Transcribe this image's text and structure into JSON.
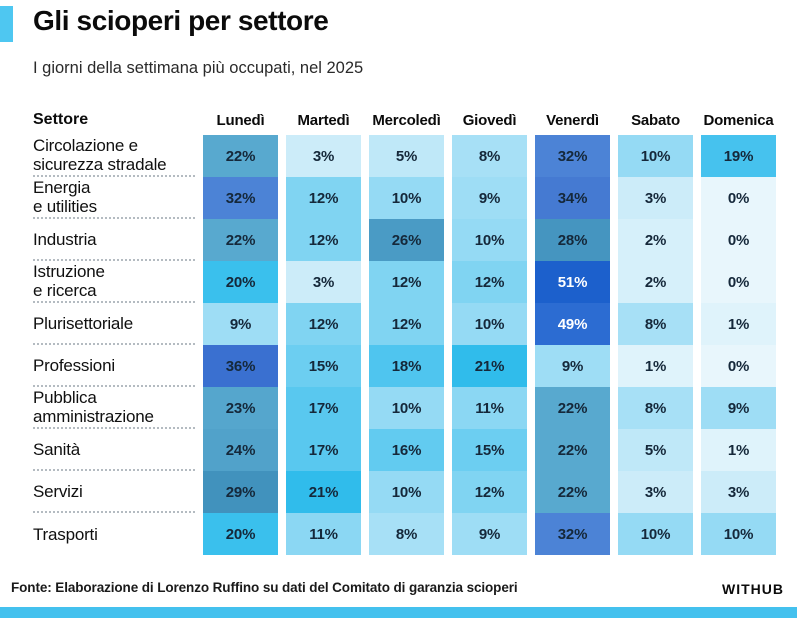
{
  "header": {
    "title": "Gli scioperi per settore",
    "subtitle": "I giorni della settimana più occupati, nel 2025",
    "accent_color": "#4EC7F1"
  },
  "chart_data": {
    "type": "heatmap",
    "title": "Gli scioperi per settore",
    "subtitle": "I giorni della settimana più occupati, nel 2025",
    "corner_label": "Settore",
    "categories": [
      "Lunedì",
      "Martedì",
      "Mercoledì",
      "Giovedì",
      "Venerdì",
      "Sabato",
      "Domenica"
    ],
    "unit": "%",
    "rows": [
      {
        "name": [
          "Circolazione e",
          "sicurezza stradale"
        ],
        "values": [
          22,
          3,
          5,
          8,
          32,
          10,
          19
        ]
      },
      {
        "name": [
          "Energia",
          "e utilities"
        ],
        "values": [
          32,
          12,
          10,
          9,
          34,
          3,
          0
        ]
      },
      {
        "name": [
          "Industria"
        ],
        "values": [
          22,
          12,
          26,
          10,
          28,
          2,
          0
        ]
      },
      {
        "name": [
          "Istruzione",
          "e ricerca"
        ],
        "values": [
          20,
          3,
          12,
          12,
          51,
          2,
          0
        ]
      },
      {
        "name": [
          "Plurisettoriale"
        ],
        "values": [
          9,
          12,
          12,
          10,
          49,
          8,
          1
        ]
      },
      {
        "name": [
          "Professioni"
        ],
        "values": [
          36,
          15,
          18,
          21,
          9,
          1,
          0
        ]
      },
      {
        "name": [
          "Pubblica",
          "amministrazione"
        ],
        "values": [
          23,
          17,
          10,
          11,
          22,
          8,
          9
        ]
      },
      {
        "name": [
          "Sanità"
        ],
        "values": [
          24,
          17,
          16,
          15,
          22,
          5,
          1
        ]
      },
      {
        "name": [
          "Servizi"
        ],
        "values": [
          29,
          21,
          10,
          12,
          22,
          3,
          3
        ]
      },
      {
        "name": [
          "Trasporti"
        ],
        "values": [
          20,
          11,
          8,
          9,
          32,
          10,
          10
        ]
      }
    ],
    "value_range": [
      0,
      51
    ],
    "color_scale": [
      {
        "value": 0,
        "color": "#E8F6FC"
      },
      {
        "value": 1,
        "color": "#DFF3FB"
      },
      {
        "value": 2,
        "color": "#D6F0FA"
      },
      {
        "value": 3,
        "color": "#CCECF9"
      },
      {
        "value": 5,
        "color": "#BFE8F8"
      },
      {
        "value": 8,
        "color": "#A7E0F6"
      },
      {
        "value": 9,
        "color": "#9EDDF5"
      },
      {
        "value": 10,
        "color": "#95DAF4"
      },
      {
        "value": 11,
        "color": "#8BD7F3"
      },
      {
        "value": 12,
        "color": "#80D4F2"
      },
      {
        "value": 15,
        "color": "#6CCEF1"
      },
      {
        "value": 16,
        "color": "#62CBF0"
      },
      {
        "value": 17,
        "color": "#59C8EF"
      },
      {
        "value": 18,
        "color": "#4FC5EF"
      },
      {
        "value": 19,
        "color": "#46C2EE"
      },
      {
        "value": 20,
        "color": "#3AC0ED"
      },
      {
        "value": 21,
        "color": "#30BCEB"
      },
      {
        "value": 22,
        "color": "#58A9CF"
      },
      {
        "value": 23,
        "color": "#55A6CD"
      },
      {
        "value": 24,
        "color": "#51A2CA"
      },
      {
        "value": 26,
        "color": "#4A9BC5"
      },
      {
        "value": 28,
        "color": "#4595C0"
      },
      {
        "value": 29,
        "color": "#4192BD"
      },
      {
        "value": 32,
        "color": "#4C83D6"
      },
      {
        "value": 34,
        "color": "#457AD2"
      },
      {
        "value": 36,
        "color": "#3A70D0"
      },
      {
        "value": 49,
        "color": "#2C6CD2"
      },
      {
        "value": 51,
        "color": "#1C60CC"
      }
    ],
    "cell_text_dark": "#15283A",
    "cell_text_light": "#FFFFFF",
    "light_text_threshold": 49
  },
  "footer": {
    "source": "Fonte: Elaborazione di Lorenzo Ruffino su dati del Comitato di garanzia scioperi",
    "brand": "WITHUB",
    "bar_color": "#44C1EE"
  }
}
